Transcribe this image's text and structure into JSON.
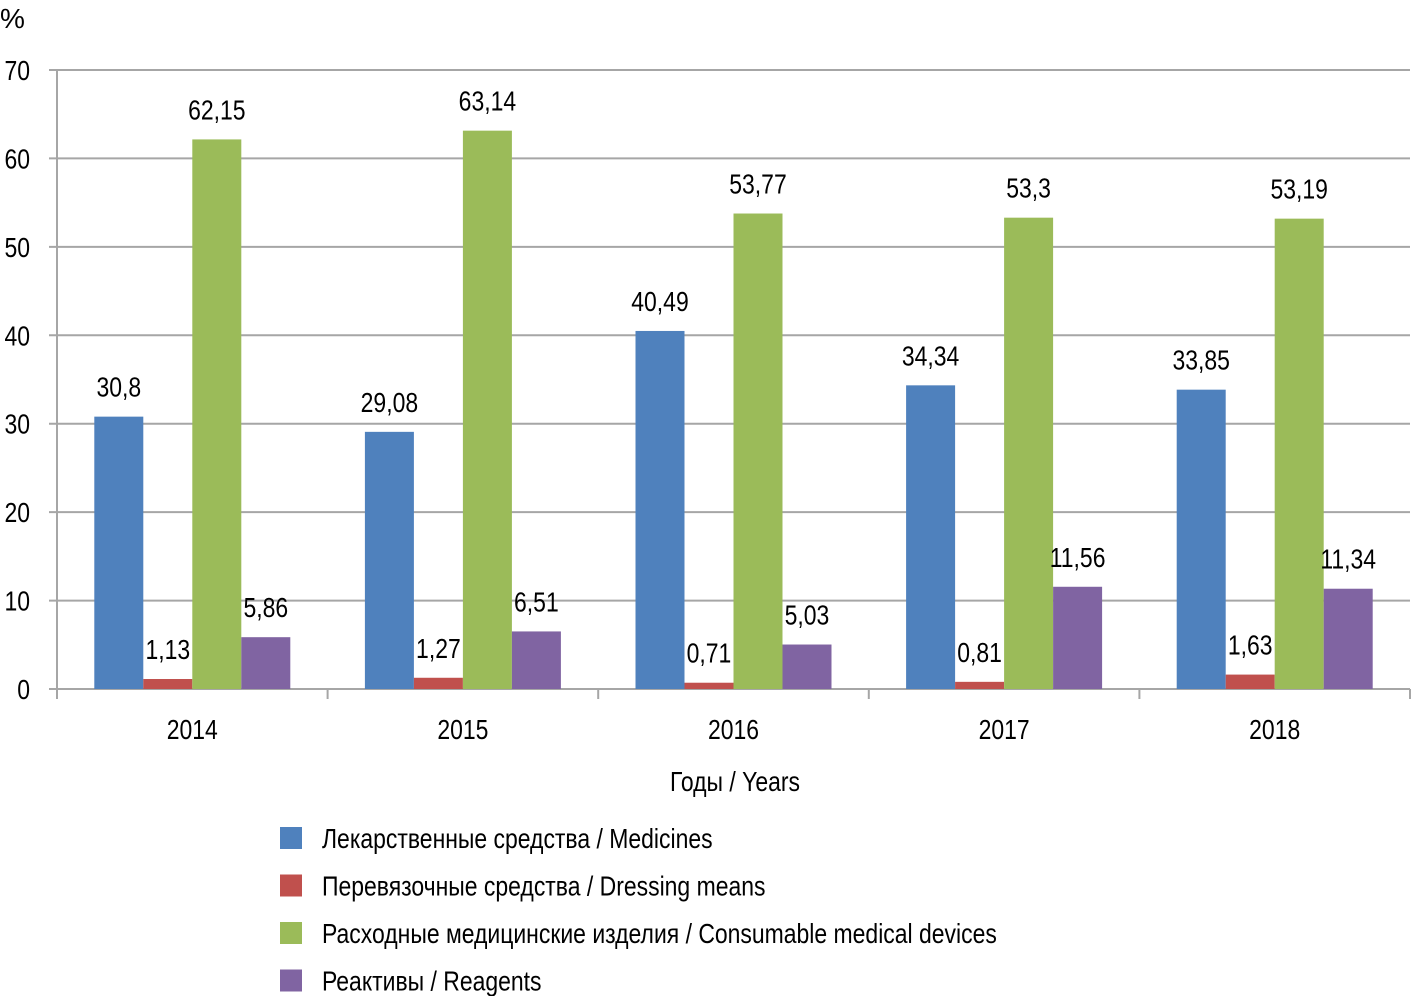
{
  "chart_data": {
    "type": "bar",
    "title": "",
    "ylabel": "%",
    "xlabel": "Годы / Years",
    "ylim": [
      0,
      70
    ],
    "yticks": [
      0,
      10,
      20,
      30,
      40,
      50,
      60,
      70
    ],
    "grid": true,
    "legend_position": "bottom",
    "categories": [
      "2014",
      "2015",
      "2016",
      "2017",
      "2018"
    ],
    "series": [
      {
        "name": "Лекарственные средства / Medicines",
        "color": "#4f81bd",
        "values": [
          30.8,
          29.08,
          40.49,
          34.34,
          33.85
        ],
        "labels": [
          "30,8",
          "29,08",
          "40,49",
          "34,34",
          "33,85"
        ]
      },
      {
        "name": "Перевязочные средства / Dressing means",
        "color": "#c0504d",
        "values": [
          1.13,
          1.27,
          0.71,
          0.81,
          1.63
        ],
        "labels": [
          "1,13",
          "1,27",
          "0,71",
          "0,81",
          "1,63"
        ]
      },
      {
        "name": "Расходные медицинские изделия / Consumable medical devices",
        "color": "#9bbb59",
        "values": [
          62.15,
          63.14,
          53.77,
          53.3,
          53.19
        ],
        "labels": [
          "62,15",
          "63,14",
          "53,77",
          "53,3",
          "53,19"
        ]
      },
      {
        "name": "Реактивы / Reagents",
        "color": "#8064a2",
        "values": [
          5.86,
          6.51,
          5.03,
          11.56,
          11.34
        ],
        "labels": [
          "5,86",
          "6,51",
          "5,03",
          "11,56",
          "11,34"
        ]
      }
    ]
  }
}
